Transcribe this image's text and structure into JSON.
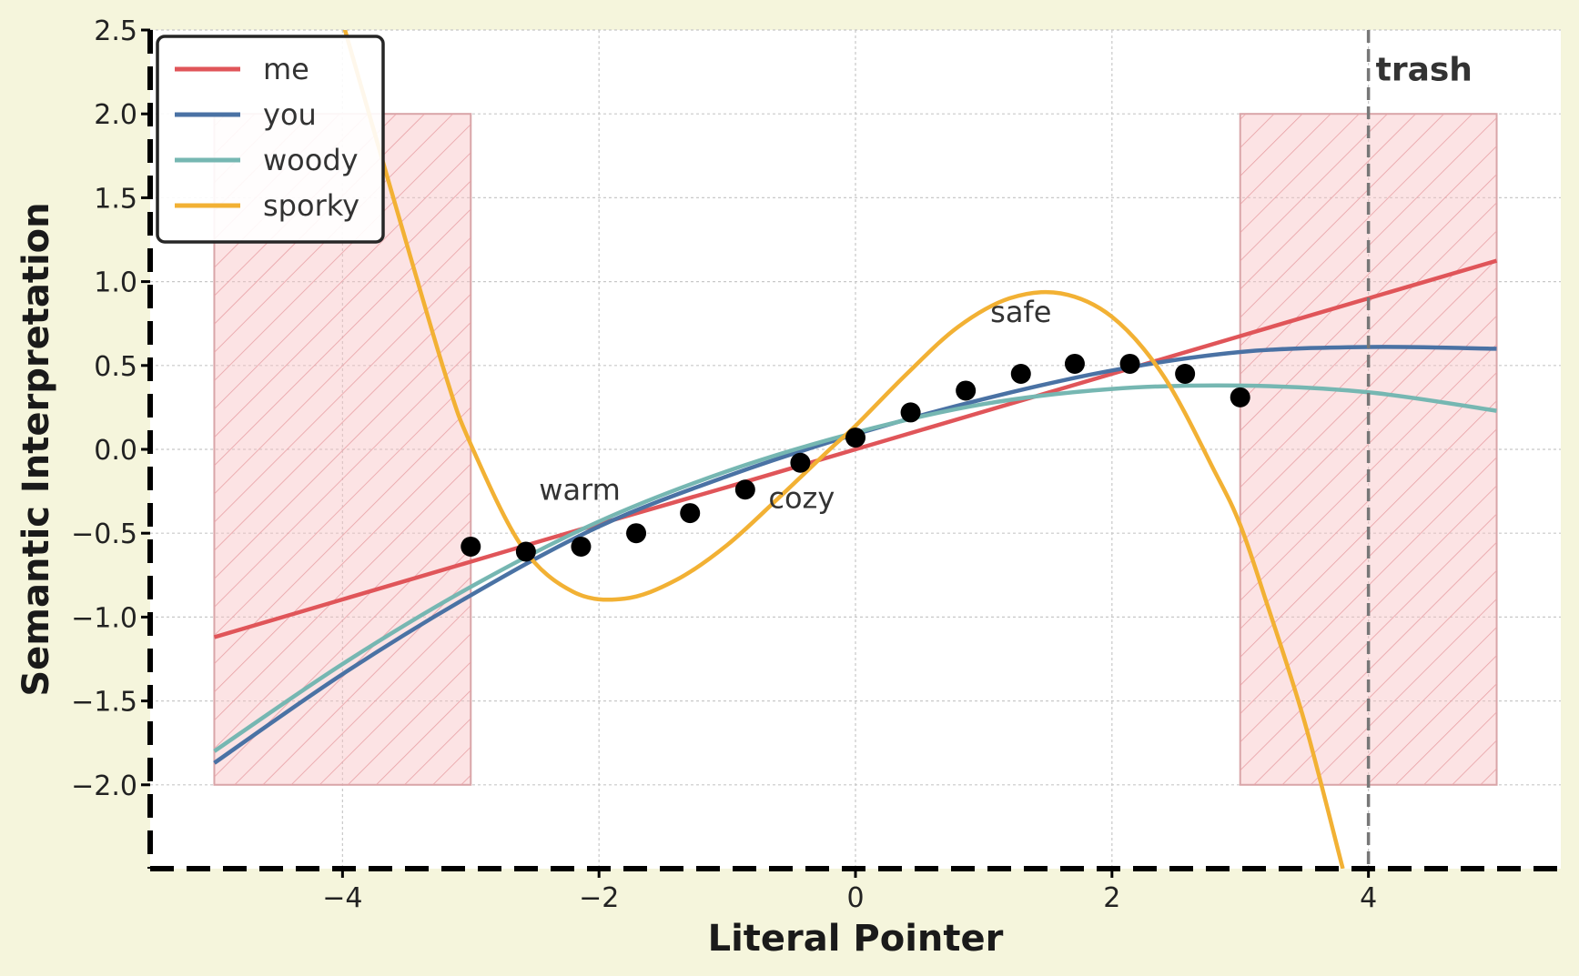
{
  "chart_data": {
    "type": "line",
    "title": "",
    "xlabel": "Literal Pointer",
    "ylabel": "Semantic Interpretation",
    "xlim": [
      -5.5,
      5.5
    ],
    "ylim": [
      -2.5,
      2.5
    ],
    "grid": true,
    "legend_position": "top-left",
    "x_ticks": [
      -4,
      -2,
      0,
      2,
      4
    ],
    "x_tick_labels": [
      "−4",
      "−2",
      "0",
      "2",
      "4"
    ],
    "y_ticks": [
      -2.0,
      -1.5,
      -1.0,
      -0.5,
      0.0,
      0.5,
      1.0,
      1.5,
      2.0,
      2.5
    ],
    "y_tick_labels": [
      "−2.0",
      "−1.5",
      "−1.0",
      "−0.5",
      "0.0",
      "0.5",
      "1.0",
      "1.5",
      "2.0",
      "2.5"
    ],
    "series": [
      {
        "name": "me",
        "color": "#e05559",
        "x": [
          -5,
          -4,
          -3,
          -2,
          -1,
          0,
          1,
          2,
          3,
          4,
          5
        ],
        "y": [
          -1.12,
          -0.895,
          -0.67,
          -0.445,
          -0.225,
          0.0,
          0.225,
          0.45,
          0.675,
          0.9,
          1.125
        ]
      },
      {
        "name": "you",
        "color": "#4a72a4",
        "x": [
          -5,
          -4,
          -3,
          -2,
          -1,
          0,
          1,
          2,
          3,
          4,
          5
        ],
        "y": [
          -1.87,
          -1.34,
          -0.87,
          -0.46,
          -0.16,
          0.09,
          0.3,
          0.47,
          0.58,
          0.61,
          0.6
        ]
      },
      {
        "name": "woody",
        "color": "#76b7b2",
        "x": [
          -5,
          -4,
          -3,
          -2,
          -1,
          0,
          1,
          2,
          3,
          4,
          5
        ],
        "y": [
          -1.8,
          -1.28,
          -0.82,
          -0.43,
          -0.13,
          0.1,
          0.27,
          0.36,
          0.38,
          0.34,
          0.23
        ]
      },
      {
        "name": "sporky",
        "color": "#f2b134",
        "x": [
          -4.0,
          -3.6,
          -3.2,
          -3.0,
          -2.6,
          -2.2,
          -1.8,
          -1.4,
          -1.0,
          -0.6,
          -0.2,
          0.0,
          0.4,
          0.8,
          1.2,
          1.6,
          2.0,
          2.4,
          2.8,
          3.0,
          3.2,
          3.5,
          3.8
        ],
        "y": [
          2.55,
          1.49,
          0.45,
          0.03,
          -0.58,
          -0.85,
          -0.89,
          -0.78,
          -0.57,
          -0.29,
          0.0,
          0.14,
          0.45,
          0.73,
          0.9,
          0.93,
          0.79,
          0.44,
          -0.13,
          -0.45,
          -0.9,
          -1.62,
          -2.5
        ]
      }
    ],
    "scatter": {
      "color": "#000000",
      "x": [
        -3.0,
        -2.57,
        -2.14,
        -1.71,
        -1.29,
        -0.86,
        -0.43,
        0.0,
        0.43,
        0.86,
        1.29,
        1.71,
        2.14,
        2.57,
        3.0
      ],
      "y": [
        -0.58,
        -0.61,
        -0.58,
        -0.5,
        -0.38,
        -0.24,
        -0.08,
        0.07,
        0.22,
        0.35,
        0.45,
        0.51,
        0.51,
        0.45,
        0.31
      ]
    },
    "shaded_regions": [
      {
        "x": [
          -5,
          -3
        ],
        "y": [
          -2,
          2
        ],
        "color": "#f9c0c4"
      },
      {
        "x": [
          3,
          5
        ],
        "y": [
          -2,
          2
        ],
        "color": "#f9c0c4"
      }
    ],
    "vline": {
      "x": 4,
      "label": "trash"
    },
    "annotations": [
      {
        "text": "warm",
        "x": -2.15,
        "y": -0.3
      },
      {
        "text": "cozy",
        "x": -0.42,
        "y": -0.35
      },
      {
        "text": "safe",
        "x": 1.29,
        "y": 0.76
      }
    ]
  }
}
